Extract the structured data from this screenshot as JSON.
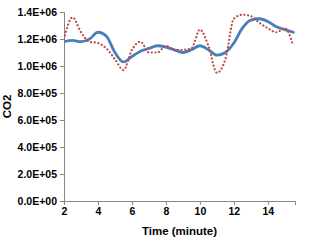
{
  "chart_data": {
    "type": "line",
    "x_label": "Time (minute)",
    "y_label": "CO2",
    "x": [
      2,
      2.5,
      3,
      3.5,
      4,
      4.5,
      5,
      5.5,
      6,
      6.5,
      7,
      7.5,
      8,
      8.5,
      9,
      9.5,
      10,
      10.5,
      11,
      11.5,
      12,
      12.5,
      13,
      13.5,
      14,
      14.5,
      15,
      15.5
    ],
    "series": [
      {
        "color": "#4a7ebb",
        "line_style": "solid",
        "values": [
          1180000,
          1190000,
          1180000,
          1200000,
          1250000,
          1220000,
          1100000,
          1030000,
          1070000,
          1110000,
          1130000,
          1150000,
          1140000,
          1120000,
          1100000,
          1120000,
          1150000,
          1120000,
          1080000,
          1100000,
          1170000,
          1280000,
          1340000,
          1350000,
          1330000,
          1290000,
          1270000,
          1250000
        ]
      },
      {
        "color": "#be4b48",
        "line_style": "dotted",
        "values": [
          1200000,
          1360000,
          1250000,
          1180000,
          1170000,
          1130000,
          1050000,
          970000,
          1120000,
          1180000,
          1100000,
          1100000,
          1150000,
          1120000,
          1120000,
          1130000,
          1270000,
          1150000,
          950000,
          1050000,
          1350000,
          1380000,
          1370000,
          1320000,
          1280000,
          1250000,
          1280000,
          1150000
        ]
      }
    ],
    "xlim": [
      2,
      15.6
    ],
    "xticks": [
      2,
      4,
      6,
      8,
      10,
      12,
      14
    ],
    "ylim": [
      0,
      1400000
    ],
    "yticks": [
      {
        "value": 0,
        "label": "0.0E+00"
      },
      {
        "value": 200000,
        "label": "2.0E+05"
      },
      {
        "value": 400000,
        "label": "4.0E+05"
      },
      {
        "value": 600000,
        "label": "6.0E+05"
      },
      {
        "value": 800000,
        "label": "8.0E+05"
      },
      {
        "value": 1000000,
        "label": "1.0E+06"
      },
      {
        "value": 1200000,
        "label": "1.2E+06"
      },
      {
        "value": 1400000,
        "label": "1.4E+06"
      }
    ]
  }
}
